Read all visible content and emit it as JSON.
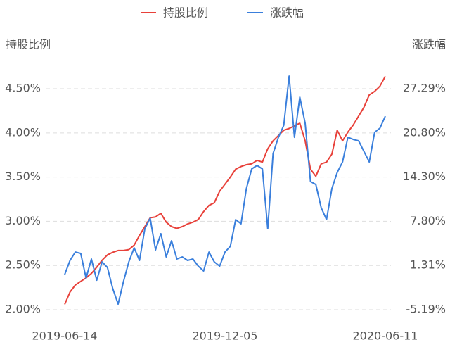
{
  "chart_data": {
    "type": "line",
    "y_label": "持股比例",
    "y2_label": "涨跌幅",
    "categories": [
      "2019-06-14",
      null,
      null,
      null,
      null,
      null,
      null,
      null,
      null,
      null,
      null,
      null,
      null,
      null,
      null,
      null,
      null,
      null,
      null,
      null,
      null,
      null,
      null,
      null,
      null,
      null,
      null,
      null,
      null,
      null,
      "2019-12-05",
      null,
      null,
      null,
      null,
      null,
      null,
      null,
      null,
      null,
      null,
      null,
      null,
      null,
      null,
      null,
      null,
      null,
      null,
      null,
      null,
      null,
      null,
      null,
      null,
      null,
      null,
      null,
      null,
      null,
      "2020-06-11"
    ],
    "series": [
      {
        "name": "持股比例",
        "color": "#e8413a",
        "axis": "y",
        "values": [
          2.06,
          2.2,
          2.28,
          2.32,
          2.36,
          2.41,
          2.48,
          2.56,
          2.62,
          2.65,
          2.67,
          2.67,
          2.68,
          2.73,
          2.84,
          2.94,
          3.04,
          3.05,
          3.09,
          2.99,
          2.94,
          2.92,
          2.94,
          2.97,
          2.99,
          3.02,
          3.11,
          3.18,
          3.21,
          3.34,
          3.42,
          3.5,
          3.59,
          3.62,
          3.64,
          3.65,
          3.69,
          3.67,
          3.82,
          3.91,
          3.97,
          4.03,
          4.05,
          4.08,
          4.11,
          3.91,
          3.59,
          3.51,
          3.65,
          3.67,
          3.76,
          4.03,
          3.91,
          4.01,
          4.09,
          4.19,
          4.29,
          4.43,
          4.47,
          4.53,
          4.64
        ]
      },
      {
        "name": "涨跌幅",
        "color": "#3a7fdc",
        "axis": "y2",
        "values": [
          -0.02,
          2.05,
          3.29,
          3.09,
          -0.54,
          2.26,
          -0.85,
          1.84,
          1.02,
          -2.09,
          -4.36,
          -1.05,
          1.84,
          3.91,
          2.05,
          6.71,
          8.26,
          3.6,
          5.98,
          2.57,
          4.95,
          2.26,
          2.57,
          2.05,
          2.26,
          1.22,
          0.5,
          3.29,
          1.84,
          1.22,
          3.29,
          4.12,
          8.05,
          7.43,
          12.6,
          15.5,
          16.02,
          15.5,
          6.71,
          17.77,
          20.15,
          21.91,
          29.15,
          20.15,
          26.05,
          22.22,
          13.64,
          13.22,
          9.81,
          8.05,
          12.6,
          14.98,
          16.53,
          20.15,
          19.84,
          19.64,
          18.08,
          16.53,
          20.88,
          21.5,
          23.26
        ]
      }
    ],
    "ylim": [
      1.9,
      4.7
    ],
    "yticks": [
      {
        "value": 2.0,
        "label": "2.00%"
      },
      {
        "value": 2.5,
        "label": "2.50%"
      },
      {
        "value": 3.0,
        "label": "3.00%"
      },
      {
        "value": 3.5,
        "label": "3.50%"
      },
      {
        "value": 4.0,
        "label": "4.00%"
      },
      {
        "value": 4.5,
        "label": "4.50%"
      }
    ],
    "y2lim": [
      -6.49,
      29.89
    ],
    "y2ticks": [
      {
        "value": -5.19,
        "label": "-5.19%"
      },
      {
        "value": 1.31,
        "label": "1.31%"
      },
      {
        "value": 7.8,
        "label": "7.80%"
      },
      {
        "value": 14.3,
        "label": "14.30%"
      },
      {
        "value": 20.8,
        "label": "20.80%"
      },
      {
        "value": 27.29,
        "label": "27.29%"
      }
    ],
    "grid": true
  }
}
